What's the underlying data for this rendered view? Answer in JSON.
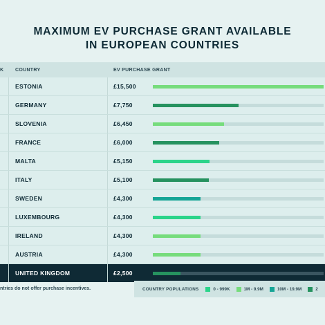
{
  "title_line1": "MAXIMUM EV PURCHASE GRANT AVAILABLE",
  "title_line2": "IN EUROPEAN COUNTRIES",
  "header": {
    "rank": "K",
    "country": "COUNTRY",
    "grant": "EV PURCHASE GRANT"
  },
  "footnote": "ntries do not offer purchase incentives.",
  "legend": {
    "title": "COUNTRY POPULATIONS",
    "items": [
      {
        "label": "0 - 999K",
        "color": "#2bd48a"
      },
      {
        "label": "1M - 9.9M",
        "color": "#76dc7c"
      },
      {
        "label": "10M - 19.9M",
        "color": "#16a596"
      },
      {
        "label": "2",
        "color": "#26925f"
      }
    ]
  },
  "colors": {
    "bg": "#e6f2f1",
    "track": "#c5dcdb",
    "dark_row": "#0f2a35"
  },
  "chart_data": {
    "type": "bar",
    "title": "MAXIMUM EV PURCHASE GRANT AVAILABLE IN EUROPEAN COUNTRIES",
    "xlim": [
      0,
      15500
    ],
    "rows": [
      {
        "country": "ESTONIA",
        "grant": "£15,500",
        "value": 15500,
        "color": "#76dc7c"
      },
      {
        "country": "GERMANY",
        "grant": "£7,750",
        "value": 7750,
        "color": "#26925f"
      },
      {
        "country": "SLOVENIA",
        "grant": "£6,450",
        "value": 6450,
        "color": "#76dc7c"
      },
      {
        "country": "FRANCE",
        "grant": "£6,000",
        "value": 6000,
        "color": "#26925f"
      },
      {
        "country": "MALTA",
        "grant": "£5,150",
        "value": 5150,
        "color": "#2bd48a"
      },
      {
        "country": "ITALY",
        "grant": "£5,100",
        "value": 5100,
        "color": "#26925f"
      },
      {
        "country": "SWEDEN",
        "grant": "£4,300",
        "value": 4300,
        "color": "#16a596"
      },
      {
        "country": "LUXEMBOURG",
        "grant": "£4,300",
        "value": 4300,
        "color": "#2bd48a"
      },
      {
        "country": "IRELAND",
        "grant": "£4,300",
        "value": 4300,
        "color": "#76dc7c"
      },
      {
        "country": "AUSTRIA",
        "grant": "£4,300",
        "value": 4300,
        "color": "#76dc7c"
      },
      {
        "country": "UNITED KINGDOM",
        "grant": "£2,500",
        "value": 2500,
        "color": "#26925f",
        "highlight": true
      }
    ]
  }
}
